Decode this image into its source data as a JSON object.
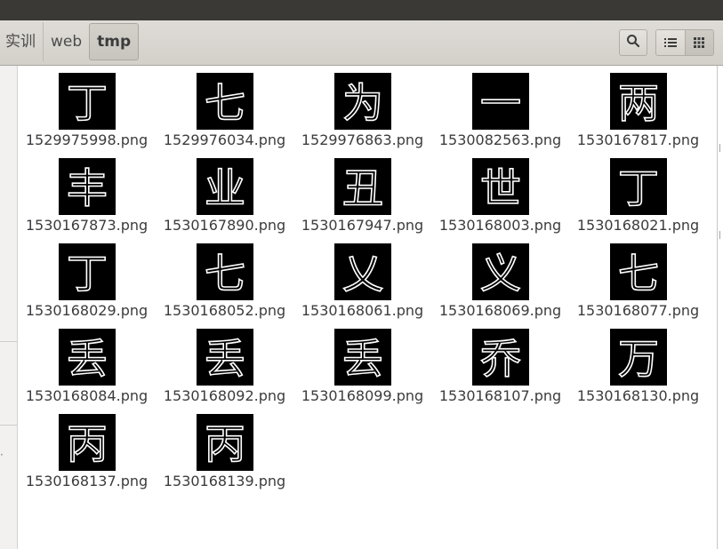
{
  "window": {
    "background": "#3c3b37"
  },
  "pathbar": {
    "crumbs": [
      "实训",
      "web",
      "tmp"
    ],
    "current_index": 2
  },
  "toolbar": {
    "search_icon": "search-icon",
    "list_view_icon": "list-view-icon",
    "grid_view_icon": "grid-view-icon"
  },
  "files": [
    {
      "name": "1529975998.png",
      "glyph": "丁"
    },
    {
      "name": "1529976034.png",
      "glyph": "七"
    },
    {
      "name": "1529976863.png",
      "glyph": "为"
    },
    {
      "name": "1530082563.png",
      "glyph": "一"
    },
    {
      "name": "1530167817.png",
      "glyph": "两"
    },
    {
      "name": "1530167873.png",
      "glyph": "丰"
    },
    {
      "name": "1530167890.png",
      "glyph": "业"
    },
    {
      "name": "1530167947.png",
      "glyph": "丑"
    },
    {
      "name": "1530168003.png",
      "glyph": "世"
    },
    {
      "name": "1530168021.png",
      "glyph": "丁"
    },
    {
      "name": "1530168029.png",
      "glyph": "丁"
    },
    {
      "name": "1530168052.png",
      "glyph": "七"
    },
    {
      "name": "1530168061.png",
      "glyph": "乂"
    },
    {
      "name": "1530168069.png",
      "glyph": "义"
    },
    {
      "name": "1530168077.png",
      "glyph": "七"
    },
    {
      "name": "1530168084.png",
      "glyph": "丢"
    },
    {
      "name": "1530168092.png",
      "glyph": "丢"
    },
    {
      "name": "1530168099.png",
      "glyph": "丢"
    },
    {
      "name": "1530168107.png",
      "glyph": "乔"
    },
    {
      "name": "1530168130.png",
      "glyph": "万"
    },
    {
      "name": "1530168137.png",
      "glyph": "丙"
    },
    {
      "name": "1530168139.png",
      "glyph": "丙"
    }
  ]
}
